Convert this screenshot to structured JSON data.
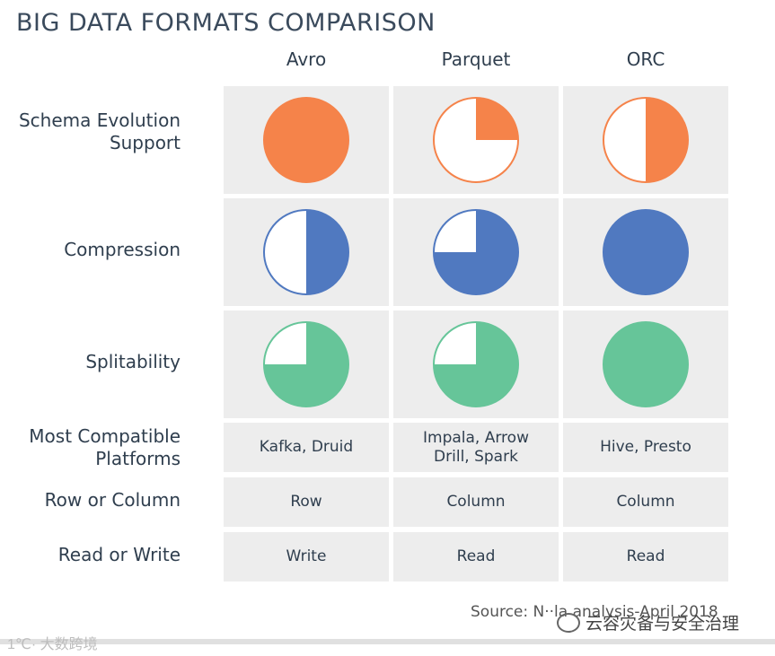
{
  "title": "BIG DATA FORMATS COMPARISON",
  "columns": [
    "Avro",
    "Parquet",
    "ORC"
  ],
  "rows": [
    {
      "label_lines": [
        "Schema Evolution",
        "Support"
      ],
      "type": "pie",
      "color": "#f5834a",
      "fills": [
        1.0,
        0.25,
        0.5
      ]
    },
    {
      "label_lines": [
        "Compression"
      ],
      "type": "pie",
      "color": "#5079c0",
      "fills": [
        0.5,
        0.75,
        1.0
      ]
    },
    {
      "label_lines": [
        "Splitability"
      ],
      "type": "pie",
      "color": "#66c599",
      "fills": [
        0.75,
        0.75,
        1.0
      ]
    },
    {
      "label_lines": [
        "Most Compatible",
        "Platforms"
      ],
      "type": "text",
      "cells": [
        [
          "Kafka, Druid"
        ],
        [
          "Impala, Arrow",
          "Drill, Spark"
        ],
        [
          "Hive, Presto"
        ]
      ]
    },
    {
      "label_lines": [
        "Row or Column"
      ],
      "type": "text",
      "cells": [
        [
          "Row"
        ],
        [
          "Column"
        ],
        [
          "Column"
        ]
      ]
    },
    {
      "label_lines": [
        "Read or Write"
      ],
      "type": "text",
      "cells": [
        [
          "Write"
        ],
        [
          "Read"
        ],
        [
          "Read"
        ]
      ]
    }
  ],
  "source": "Source: N··la analysis-April 2018",
  "watermark_left": "1℃· 大数跨境",
  "watermark_right": "云容灾备与安全治理"
}
